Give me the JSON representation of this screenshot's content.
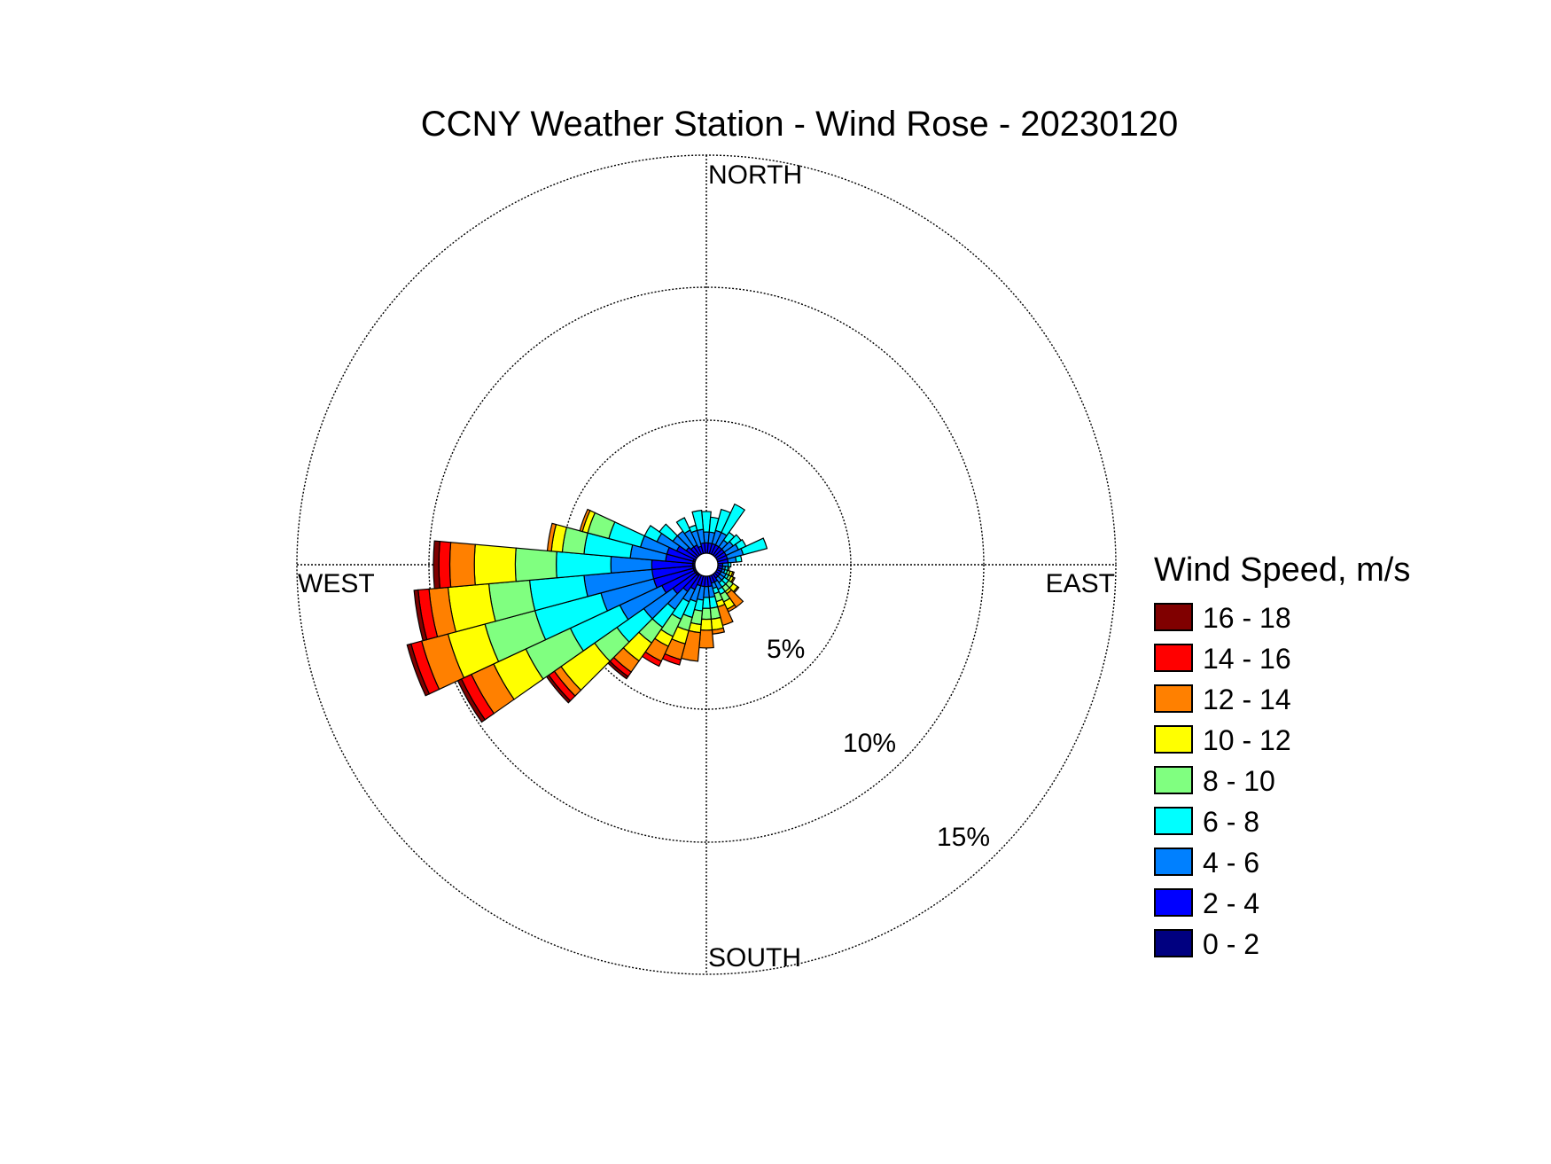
{
  "chart_data": {
    "type": "windrose",
    "title": "CCNY Weather Station - Wind Rose - 20230120",
    "compass": {
      "north": "NORTH",
      "east": "EAST",
      "south": "SOUTH",
      "west": "WEST"
    },
    "radial_ticks": [
      {
        "value": 5,
        "label": "5%"
      },
      {
        "value": 10,
        "label": "10%"
      },
      {
        "value": 15,
        "label": "15%"
      }
    ],
    "rmax": 15,
    "legend": {
      "title": "Wind Speed, m/s",
      "bins": [
        {
          "label": "16 - 18",
          "color": "#800000"
        },
        {
          "label": "14 - 16",
          "color": "#ff0000"
        },
        {
          "label": "12 - 14",
          "color": "#ff8000"
        },
        {
          "label": "10 - 12",
          "color": "#ffff00"
        },
        {
          "label": "8 - 10",
          "color": "#80ff80"
        },
        {
          "label": "6 - 8",
          "color": "#00ffff"
        },
        {
          "label": "4 - 6",
          "color": "#0080ff"
        },
        {
          "label": "2 - 4",
          "color": "#0000ff"
        },
        {
          "label": "0 - 2",
          "color": "#000080"
        }
      ]
    },
    "bin_colors_low_to_high": [
      "#000080",
      "#0000ff",
      "#0080ff",
      "#00ffff",
      "#80ff80",
      "#ffff00",
      "#ff8000",
      "#ff0000",
      "#800000"
    ],
    "sector_width_deg": 10,
    "sectors": [
      {
        "dir": 0,
        "cum": [
          0.4,
          0.8,
          1.2,
          1.95
        ]
      },
      {
        "dir": 10,
        "cum": [
          0.4,
          0.8,
          1.2,
          1.75
        ]
      },
      {
        "dir": 20,
        "cum": [
          0.4,
          0.8,
          1.3,
          2.1
        ]
      },
      {
        "dir": 30,
        "cum": [
          0.4,
          0.8,
          1.3,
          2.45
        ]
      },
      {
        "dir": 40,
        "cum": [
          0.4,
          0.8,
          1.1,
          1.45
        ]
      },
      {
        "dir": 50,
        "cum": [
          0.4,
          0.8,
          1.2,
          1.55
        ]
      },
      {
        "dir": 60,
        "cum": [
          0.4,
          0.8,
          1.3,
          1.6
        ]
      },
      {
        "dir": 70,
        "cum": [
          0.4,
          0.8,
          1.4,
          2.3
        ]
      },
      {
        "dir": 80,
        "cum": [
          0.4,
          0.8,
          1.1,
          1.3
        ]
      },
      {
        "dir": 90,
        "cum": [
          0.4,
          0.6,
          0.8,
          0.9
        ]
      },
      {
        "dir": 100,
        "cum": [
          0.4,
          0.6,
          0.7,
          0.8,
          0.85
        ]
      },
      {
        "dir": 110,
        "cum": [
          0.4,
          0.6,
          0.7,
          0.8,
          0.9,
          1.0,
          1.05
        ]
      },
      {
        "dir": 120,
        "cum": [
          0.4,
          0.6,
          0.8,
          0.9,
          1.0,
          1.1,
          1.15
        ]
      },
      {
        "dir": 130,
        "cum": [
          0.4,
          0.6,
          0.8,
          1.0,
          1.2,
          1.4,
          1.45
        ]
      },
      {
        "dir": 140,
        "cum": [
          0.4,
          0.6,
          0.8,
          1.0,
          1.2,
          1.3,
          1.9
        ]
      },
      {
        "dir": 150,
        "cum": [
          0.4,
          0.7,
          1.0,
          1.2,
          1.5,
          1.8,
          1.9
        ]
      },
      {
        "dir": 160,
        "cum": [
          0.4,
          0.7,
          0.9,
          1.1,
          1.4,
          1.6,
          2.3
        ]
      },
      {
        "dir": 170,
        "cum": [
          0.4,
          0.8,
          1.2,
          1.6,
          2.0,
          2.4,
          2.55
        ]
      },
      {
        "dir": 180,
        "cum": [
          0.4,
          0.8,
          1.2,
          1.6,
          2.0,
          2.4,
          3.05
        ]
      },
      {
        "dir": 190,
        "cum": [
          0.4,
          0.8,
          1.3,
          1.7,
          2.2,
          2.5,
          3.55
        ]
      },
      {
        "dir": 200,
        "cum": [
          0.4,
          0.8,
          1.4,
          2.0,
          2.5,
          3.0,
          3.6,
          3.8
        ]
      },
      {
        "dir": 210,
        "cum": [
          0.4,
          1.0,
          1.5,
          2.2,
          2.9,
          3.3,
          3.9,
          4.1
        ]
      },
      {
        "dir": 220,
        "cum": [
          0.5,
          1.2,
          2.0,
          2.8,
          3.5,
          4.3,
          4.8,
          5.0,
          5.1
        ]
      },
      {
        "dir": 230,
        "cum": [
          0.5,
          1.5,
          2.8,
          4.0,
          5.0,
          6.5,
          6.8,
          7.05,
          7.15
        ]
      },
      {
        "dir": 240,
        "cum": [
          0.5,
          1.8,
          3.5,
          5.5,
          7.3,
          8.6,
          9.5,
          9.9,
          10.05
        ]
      },
      {
        "dir": 250,
        "cum": [
          0.5,
          2.0,
          4.0,
          6.5,
          8.4,
          9.8,
          10.8,
          11.2,
          11.35
        ]
      },
      {
        "dir": 260,
        "cum": [
          0.5,
          2.0,
          4.5,
          6.5,
          8.0,
          9.5,
          10.2,
          10.6,
          10.75
        ]
      },
      {
        "dir": 270,
        "cum": [
          0.5,
          2.0,
          3.5,
          5.5,
          7.0,
          8.5,
          9.4,
          9.8,
          10.0
        ]
      },
      {
        "dir": 280,
        "cum": [
          0.5,
          1.5,
          2.8,
          4.5,
          5.3,
          5.7,
          5.85
        ]
      },
      {
        "dir": 290,
        "cum": [
          0.5,
          1.5,
          2.5,
          3.7,
          4.5,
          4.7,
          4.8
        ]
      },
      {
        "dir": 300,
        "cum": [
          0.4,
          1.2,
          2.0,
          2.5
        ]
      },
      {
        "dir": 310,
        "cum": [
          0.4,
          0.9,
          1.5,
          2.1
        ]
      },
      {
        "dir": 320,
        "cum": [
          0.4,
          0.8,
          1.5
        ]
      },
      {
        "dir": 330,
        "cum": [
          0.4,
          0.8,
          1.4,
          1.9
        ]
      },
      {
        "dir": 340,
        "cum": [
          0.4,
          0.7,
          1.3,
          1.5
        ]
      },
      {
        "dir": 350,
        "cum": [
          0.4,
          0.8,
          1.3,
          2.0
        ]
      }
    ]
  }
}
